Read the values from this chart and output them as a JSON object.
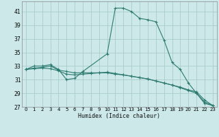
{
  "xlabel": "Humidex (Indice chaleur)",
  "bg_color": "#cce8e8",
  "grid_color": "#aacccc",
  "line_color": "#2a7a6f",
  "xlim": [
    -0.5,
    23.5
  ],
  "ylim": [
    27,
    42.5
  ],
  "yticks": [
    27,
    29,
    31,
    33,
    35,
    37,
    39,
    41
  ],
  "xticks": [
    0,
    1,
    2,
    3,
    4,
    5,
    6,
    7,
    8,
    9,
    10,
    11,
    12,
    13,
    14,
    15,
    16,
    17,
    18,
    19,
    20,
    21,
    22,
    23
  ],
  "series": [
    {
      "x": [
        0,
        1,
        2,
        3,
        4,
        5,
        6,
        7,
        10,
        11,
        12,
        13,
        14,
        15,
        16,
        17,
        18,
        19,
        20,
        21,
        22,
        23
      ],
      "y": [
        32.5,
        33.0,
        33.0,
        33.2,
        32.5,
        31.0,
        31.2,
        32.2,
        34.8,
        41.5,
        41.5,
        41.0,
        40.0,
        39.8,
        39.5,
        36.8,
        33.5,
        32.5,
        30.5,
        29.0,
        27.5,
        27.2
      ]
    },
    {
      "x": [
        0,
        1,
        2,
        3,
        4,
        5,
        6,
        7,
        8,
        9,
        10,
        11,
        12,
        13,
        14,
        15,
        16,
        17,
        18,
        19,
        20,
        21,
        22,
        23
      ],
      "y": [
        32.5,
        32.7,
        32.8,
        33.0,
        32.4,
        32.2,
        32.0,
        32.0,
        32.0,
        32.0,
        32.0,
        31.8,
        31.7,
        31.5,
        31.3,
        31.1,
        30.8,
        30.5,
        30.2,
        29.9,
        29.5,
        29.2,
        28.0,
        27.2
      ]
    },
    {
      "x": [
        0,
        1,
        2,
        3,
        4,
        5,
        6,
        7,
        8,
        9,
        10,
        11,
        12,
        13,
        14,
        15,
        16,
        17,
        18,
        19,
        20,
        21,
        22,
        23
      ],
      "y": [
        32.5,
        32.6,
        32.7,
        32.6,
        32.3,
        31.8,
        31.7,
        31.8,
        31.9,
        32.0,
        32.1,
        31.9,
        31.7,
        31.5,
        31.3,
        31.1,
        30.8,
        30.5,
        30.2,
        29.8,
        29.4,
        29.0,
        27.7,
        27.2
      ]
    }
  ]
}
